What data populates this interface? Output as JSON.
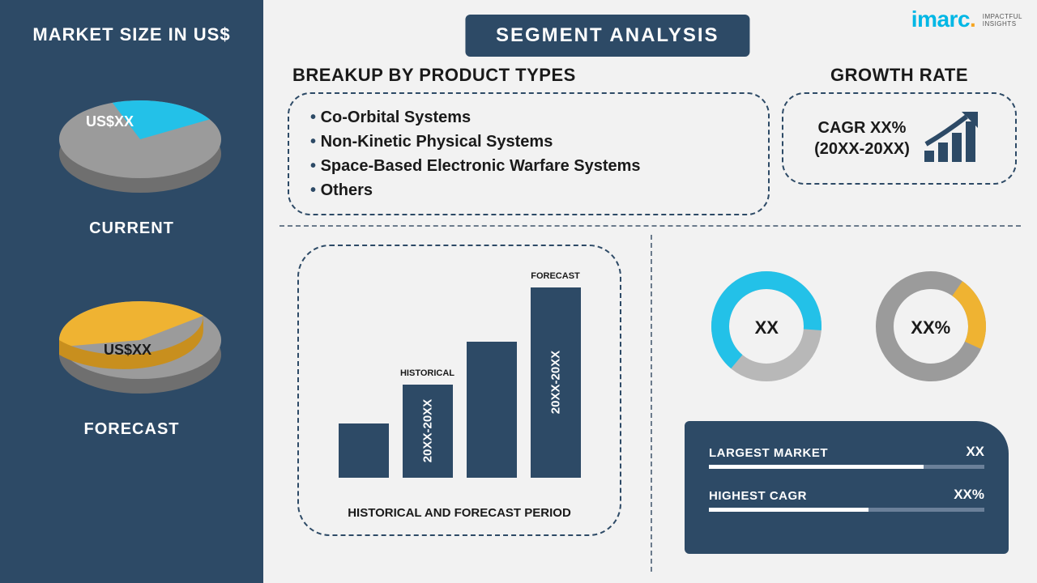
{
  "colors": {
    "navy": "#2d4a66",
    "cyan": "#23c1e8",
    "yellow": "#efb332",
    "grey": "#9b9b9b",
    "greyLight": "#b8b8b8",
    "bgLight": "#f2f2f2",
    "dashBorder": "#2d4a66"
  },
  "logo": {
    "brand": "imarc",
    "tag1": "IMPACTFUL",
    "tag2": "INSIGHTS"
  },
  "left": {
    "title": "MARKET SIZE IN US$",
    "pies": [
      {
        "label": "US$XX",
        "caption": "CURRENT",
        "sliceColor": "#23c1e8",
        "baseColor": "#9b9b9b",
        "slicePct": 22,
        "sliceStartDeg": 250
      },
      {
        "label": "US$XX",
        "caption": "FORECAST",
        "sliceColor": "#efb332",
        "baseColor": "#9b9b9b",
        "slicePct": 42,
        "sliceStartDeg": 170
      }
    ]
  },
  "header": "SEGMENT ANALYSIS",
  "breakup": {
    "title": "BREAKUP BY PRODUCT TYPES",
    "items": [
      "Co-Orbital Systems",
      "Non-Kinetic Physical Systems",
      "Space-Based Electronic Warfare Systems",
      "Others"
    ]
  },
  "growth": {
    "title": "GROWTH RATE",
    "line1": "CAGR XX%",
    "line2": "(20XX-20XX)"
  },
  "barChart": {
    "caption": "HISTORICAL AND FORECAST PERIOD",
    "bars": [
      {
        "heightPct": 28,
        "top": "",
        "rot": ""
      },
      {
        "heightPct": 48,
        "top": "HISTORICAL",
        "rot": "20XX-20XX"
      },
      {
        "heightPct": 70,
        "top": "",
        "rot": ""
      },
      {
        "heightPct": 98,
        "top": "FORECAST",
        "rot": "20XX-20XX"
      }
    ],
    "barColor": "#2d4a66"
  },
  "donuts": [
    {
      "center": "XX",
      "ringColor": "#23c1e8",
      "trackColor": "#b8b8b8",
      "pct": 65,
      "thickness": 22,
      "size": 140,
      "startDeg": 130
    },
    {
      "center": "XX%",
      "ringColor": "#efb332",
      "trackColor": "#9b9b9b",
      "pct": 22,
      "thickness": 22,
      "size": 140,
      "startDeg": -55
    }
  ],
  "metrics": [
    {
      "label": "LARGEST MARKET",
      "value": "XX",
      "fillPct": 78
    },
    {
      "label": "HIGHEST CAGR",
      "value": "XX%",
      "fillPct": 58
    }
  ]
}
